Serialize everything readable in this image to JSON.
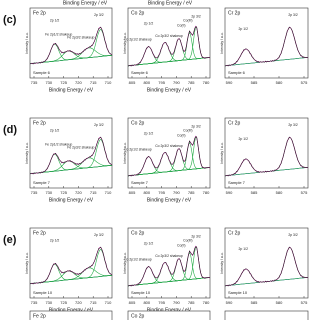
{
  "top_axis_title": "Binding Energy / eV",
  "rows": [
    {
      "label": "(c)",
      "panels": [
        {
          "title": "Fe 2p",
          "ticks": [
            "735",
            "730",
            "725",
            "720",
            "715",
            "710"
          ],
          "sample": "Sample 6",
          "peaks": [
            "2p 1/2",
            "2p 3/2",
            "Fe 2p1/2 shakeup",
            "Fe 2p3/2 shakeup"
          ]
        },
        {
          "title": "Co 2p",
          "ticks": [
            "805",
            "800",
            "795",
            "790",
            "785",
            "780"
          ],
          "sample": "Sample 6",
          "peaks": [
            "2p 1/2",
            "2p 3/2",
            "Co 2p1/2 shakeup",
            "Co 2p3/2 shakeup",
            "Co(II)",
            "Co(III)"
          ]
        },
        {
          "title": "Cr 2p",
          "ticks": [
            "590",
            "585",
            "580",
            "575"
          ],
          "sample": "Sample 6",
          "peaks": [
            "2p 1/2",
            "2p 3/2"
          ]
        }
      ],
      "axis_title": "Binding Energy / eV"
    },
    {
      "label": "(d)",
      "panels": [
        {
          "title": "Fe 2p",
          "ticks": [
            "735",
            "730",
            "725",
            "720",
            "715",
            "710"
          ],
          "sample": "Sample 7",
          "peaks": [
            "2p 1/2",
            "2p 3/2",
            "Fe 2p1/2 shakeup",
            "Fe 2p3/2 shakeup"
          ]
        },
        {
          "title": "Co 2p",
          "ticks": [
            "805",
            "800",
            "795",
            "790",
            "785",
            "780"
          ],
          "sample": "Sample 7",
          "peaks": [
            "2p 1/2",
            "2p 3/2",
            "Co 2p1/2 shakeup",
            "Co 2p3/2 shakeup",
            "Co(II)",
            "Co(III)"
          ]
        },
        {
          "title": "Cr 2p",
          "ticks": [
            "590",
            "585",
            "580",
            "575"
          ],
          "sample": "Sample 7",
          "peaks": [
            "2p 1/2",
            "2p 3/2"
          ]
        }
      ],
      "axis_title": "Binding Energy / eV"
    },
    {
      "label": "(e)",
      "panels": [
        {
          "title": "Fe 2p",
          "ticks": [
            "735",
            "730",
            "725",
            "720",
            "715",
            "710"
          ],
          "sample": "Sample 10",
          "peaks": [
            "2p 1/2",
            "2p 3/2"
          ]
        },
        {
          "title": "Co 2p",
          "ticks": [
            "805",
            "800",
            "795",
            "790",
            "785",
            "780"
          ],
          "sample": "Sample 10",
          "peaks": [
            "2p 1/2",
            "2p 3/2",
            "Co 2p1/2 shakeup",
            "Co 2p3/2 shakeup",
            "Co(II)",
            "Co(III)"
          ]
        },
        {
          "title": "Cr 2p",
          "ticks": [
            "590",
            "585",
            "580",
            "575"
          ],
          "sample": "Sample 10",
          "peaks": [
            "2p 1/2",
            "2p 3/2"
          ]
        }
      ],
      "axis_title": "Binding Energy / eV"
    }
  ],
  "partial_row": [
    "Fe 2p",
    "Co 2p"
  ],
  "y_axis_title": "Intensity / a.u."
}
